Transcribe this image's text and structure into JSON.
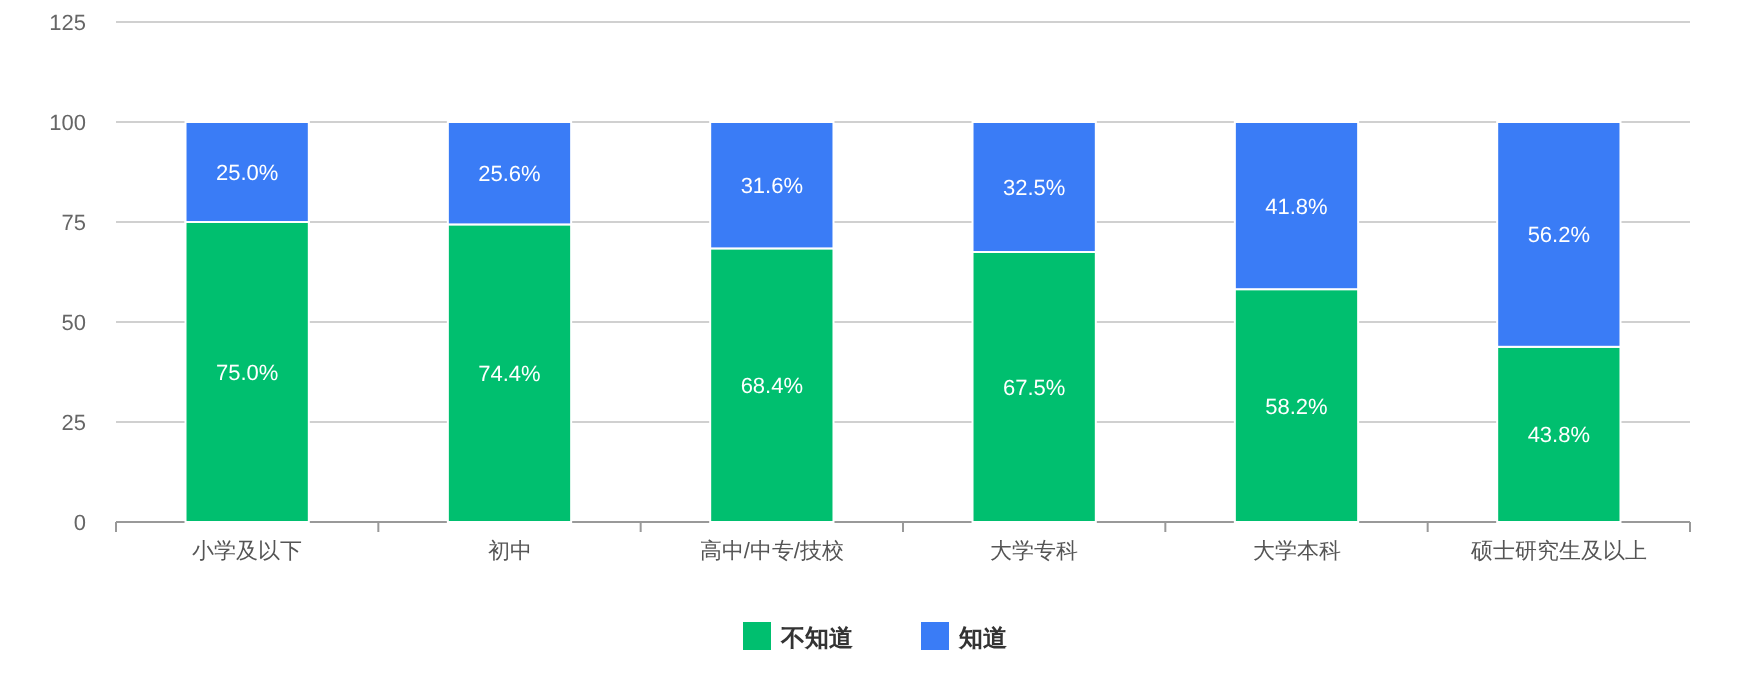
{
  "chart_data": {
    "type": "bar",
    "stacked": true,
    "categories": [
      "小学及以下",
      "初中",
      "高中/中专/技校",
      "大学专科",
      "大学本科",
      "硕士研究生及以上"
    ],
    "ylim": [
      0,
      125
    ],
    "yticks": [
      0,
      25,
      50,
      75,
      100,
      125
    ],
    "grid": "y",
    "legend": "bottom",
    "series": [
      {
        "name": "不知道",
        "color": "#00bf6f",
        "values": [
          75.0,
          74.4,
          68.4,
          67.5,
          58.2,
          43.8
        ],
        "value_labels": [
          "75.0%",
          "74.4%",
          "68.4%",
          "67.5%",
          "58.2%",
          "43.8%"
        ]
      },
      {
        "name": "知道",
        "color": "#3a7cf6",
        "values": [
          25.0,
          25.6,
          31.6,
          32.5,
          41.8,
          56.2
        ],
        "value_labels": [
          "25.0%",
          "25.6%",
          "31.6%",
          "32.5%",
          "41.8%",
          "56.2%"
        ]
      }
    ]
  }
}
